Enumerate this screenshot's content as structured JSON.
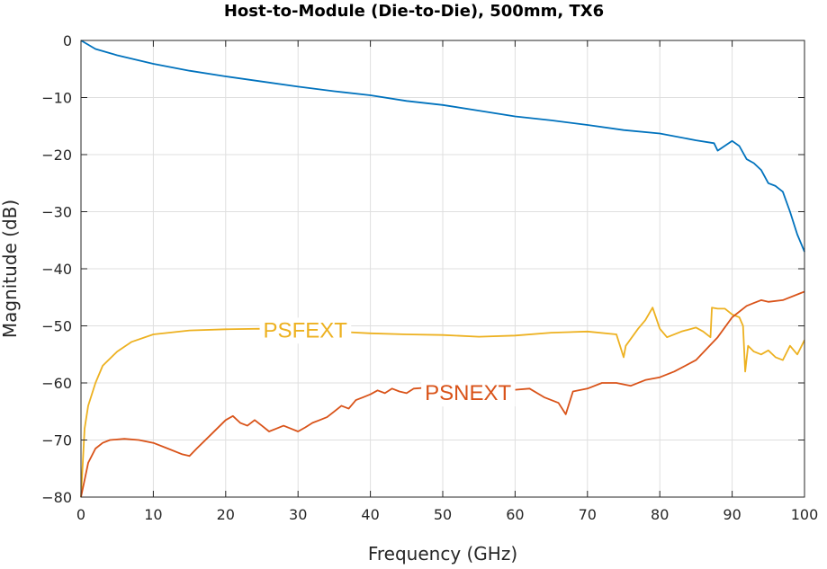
{
  "chart_data": {
    "type": "line",
    "title": "Host-to-Module (Die-to-Die), 500mm, TX6",
    "xlabel": "Frequency (GHz)",
    "ylabel": "Magnitude (dB)",
    "xlim": [
      0,
      100
    ],
    "ylim": [
      -80,
      0
    ],
    "xticks": [
      0,
      10,
      20,
      30,
      40,
      50,
      60,
      70,
      80,
      90,
      100
    ],
    "yticks": [
      0,
      -10,
      -20,
      -30,
      -40,
      -50,
      -60,
      -70,
      -80
    ],
    "grid": true,
    "series": [
      {
        "name": "",
        "color": "#0072BD",
        "x": [
          0,
          2,
          5,
          10,
          15,
          20,
          25,
          30,
          35,
          40,
          45,
          50,
          55,
          60,
          65,
          70,
          75,
          80,
          85,
          87.5,
          88,
          90,
          91,
          92,
          93,
          94,
          95,
          96,
          97,
          98,
          99,
          100
        ],
        "y": [
          0,
          -1.5,
          -2.6,
          -4.1,
          -5.3,
          -6.3,
          -7.2,
          -8.1,
          -8.9,
          -9.6,
          -10.6,
          -11.3,
          -12.3,
          -13.3,
          -14.0,
          -14.8,
          -15.7,
          -16.3,
          -17.5,
          -18.0,
          -19.3,
          -17.6,
          -18.5,
          -20.8,
          -21.5,
          -22.7,
          -25.0,
          -25.5,
          -26.5,
          -30.0,
          -34.0,
          -37.0
        ]
      },
      {
        "name": "PSFEXT",
        "color": "#EDB120",
        "x": [
          0,
          0.5,
          1,
          2,
          3,
          5,
          7,
          10,
          15,
          20,
          25,
          30,
          35,
          40,
          45,
          50,
          55,
          60,
          65,
          70,
          74,
          75,
          75.3,
          77,
          78,
          79,
          80,
          81,
          83,
          85,
          86,
          87,
          87.2,
          88,
          89,
          90,
          91,
          91.5,
          91.8,
          92.2,
          93,
          94,
          95,
          96,
          97,
          98,
          99,
          100
        ],
        "y": [
          -80,
          -68,
          -64,
          -60,
          -57,
          -54.5,
          -52.8,
          -51.5,
          -50.8,
          -50.6,
          -50.5,
          -50.8,
          -51.0,
          -51.3,
          -51.5,
          -51.6,
          -51.9,
          -51.7,
          -51.2,
          -51.0,
          -51.5,
          -55.5,
          -53.5,
          -50.5,
          -49.0,
          -46.8,
          -50.5,
          -52.0,
          -51.0,
          -50.3,
          -51.0,
          -52.0,
          -46.8,
          -47.0,
          -47.0,
          -48.0,
          -48.5,
          -50.0,
          -58.0,
          -53.5,
          -54.5,
          -55.0,
          -54.3,
          -55.5,
          -56.0,
          -53.5,
          -55.0,
          -52.5
        ]
      },
      {
        "name": "PSNEXT",
        "color": "#D95319",
        "x": [
          0,
          0.5,
          1,
          2,
          3,
          4,
          6,
          8,
          10,
          12,
          14,
          15,
          16,
          18,
          20,
          21,
          22,
          23,
          24,
          25,
          26,
          27,
          28,
          29,
          30,
          31,
          32,
          33,
          34,
          35,
          36,
          37,
          38,
          39,
          40,
          41,
          42,
          43,
          44,
          45,
          46,
          48,
          50,
          52,
          54,
          56,
          58,
          60,
          62,
          64,
          66,
          67,
          68,
          70,
          72,
          74,
          76,
          78,
          80,
          82,
          85,
          88,
          90,
          92,
          93,
          94,
          95,
          97,
          100
        ],
        "y": [
          -80,
          -77,
          -74,
          -71.5,
          -70.5,
          -70.0,
          -69.8,
          -70.0,
          -70.5,
          -71.5,
          -72.5,
          -72.8,
          -71.5,
          -69.0,
          -66.5,
          -65.8,
          -67.0,
          -67.5,
          -66.5,
          -67.5,
          -68.5,
          -68.0,
          -67.5,
          -68.0,
          -68.5,
          -67.8,
          -67.0,
          -66.5,
          -66.0,
          -65.0,
          -64.0,
          -64.5,
          -63.0,
          -62.5,
          -62.0,
          -61.3,
          -61.8,
          -61.0,
          -61.5,
          -61.8,
          -61.0,
          -60.8,
          -60.5,
          -61.0,
          -60.8,
          -61.5,
          -61.0,
          -61.2,
          -61.0,
          -62.5,
          -63.5,
          -65.5,
          -61.5,
          -61.0,
          -60.0,
          -60.0,
          -60.5,
          -59.5,
          -59.0,
          -58.0,
          -56.0,
          -52.0,
          -48.5,
          -46.5,
          -46.0,
          -45.5,
          -45.8,
          -45.5,
          -44.0
        ]
      }
    ],
    "annotations": [
      {
        "text": "PSFEXT",
        "color": "#EDB120",
        "x": 31,
        "y": -50.6
      },
      {
        "text": "PSNEXT",
        "color": "#D95319",
        "x": 53.5,
        "y": -61.6
      }
    ]
  }
}
